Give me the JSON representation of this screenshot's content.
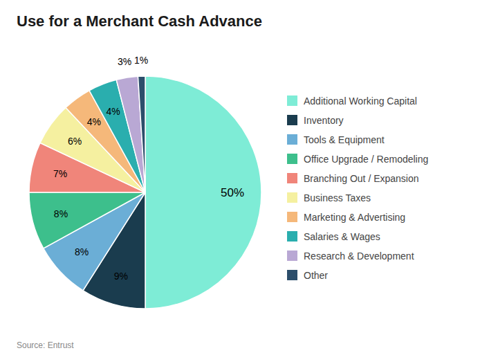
{
  "chart_data": {
    "type": "pie",
    "title": "Use for a Merchant Cash Advance",
    "annotations": [
      "Source: Entrust"
    ],
    "categories": [
      "Additional Working Capital",
      "Inventory",
      "Tools & Equipment",
      "Office Upgrade / Remodeling",
      "Branching Out / Expansion",
      "Business Taxes",
      "Marketing & Advertising",
      "Salaries & Wages",
      "Research & Development",
      "Other"
    ],
    "values": [
      50,
      9,
      8,
      8,
      7,
      6,
      4,
      4,
      3,
      1
    ],
    "value_labels": [
      "50%",
      "9%",
      "8%",
      "8%",
      "7%",
      "6%",
      "4%",
      "4%",
      "3%",
      "1%"
    ],
    "colors": [
      "#7EECD6",
      "#1A3C4E",
      "#6BAED6",
      "#3DBF8C",
      "#F0857A",
      "#F5F0A0",
      "#F5B87A",
      "#2AAEAE",
      "#B9A8D4",
      "#2C4E6B"
    ],
    "data_labels": true,
    "legend": "right"
  }
}
